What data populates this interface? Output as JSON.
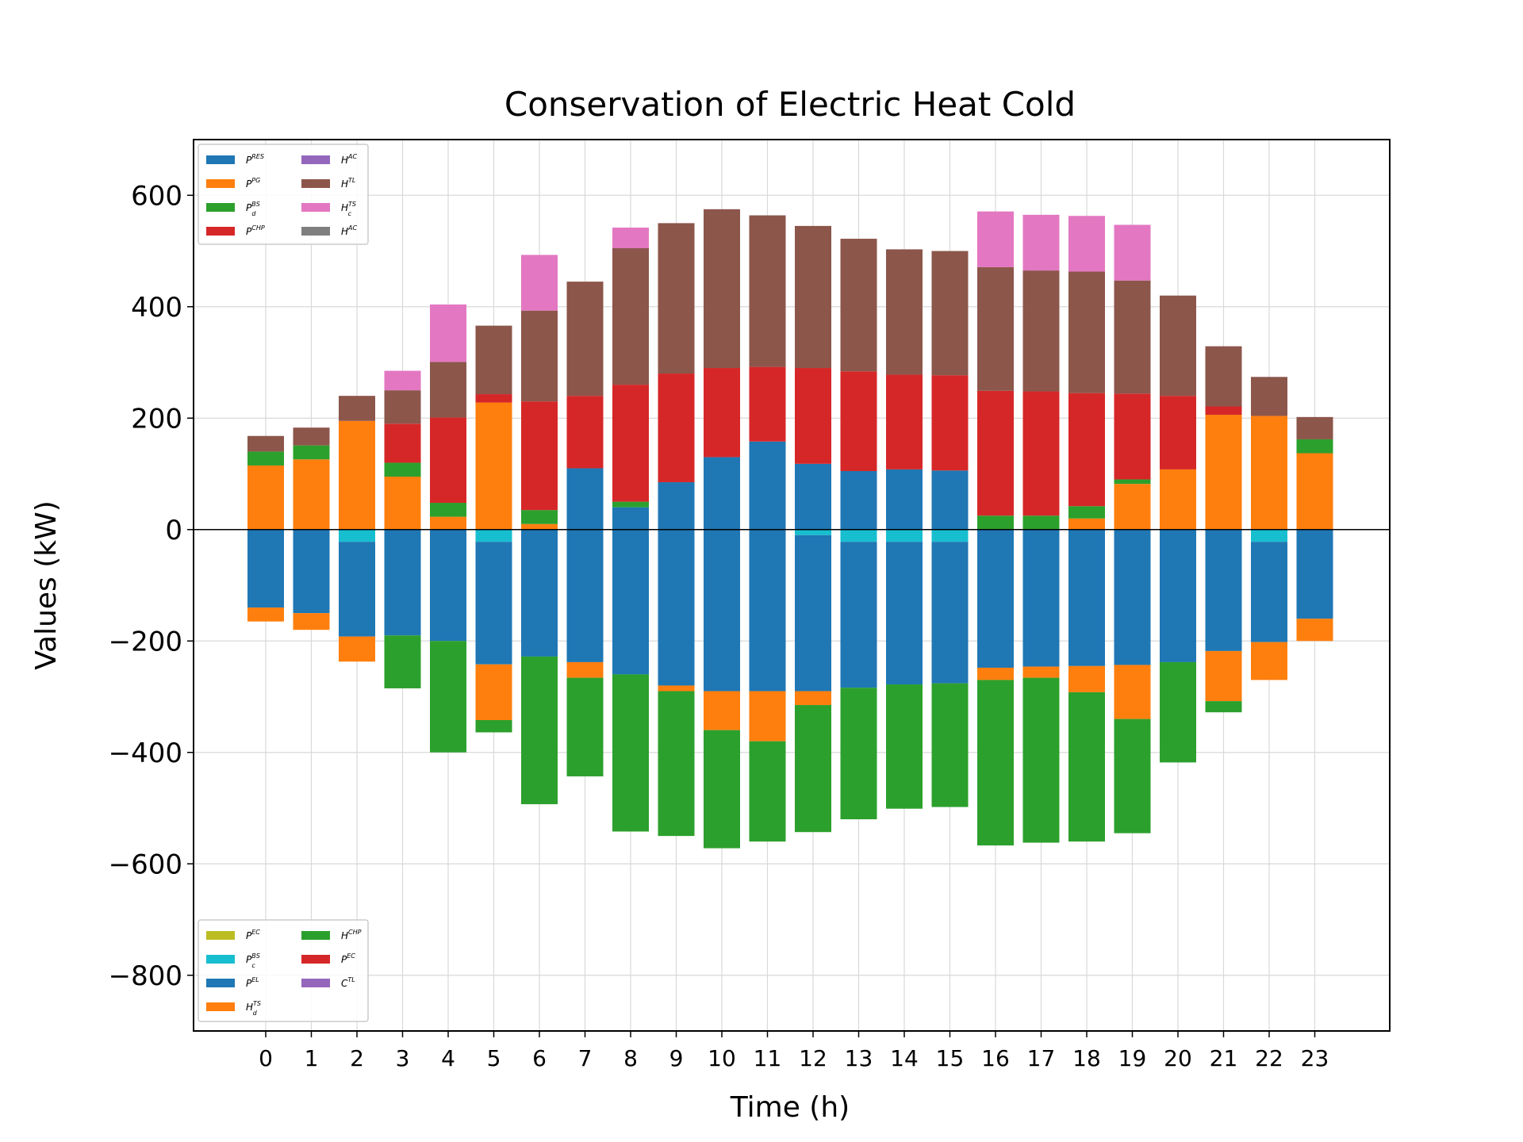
{
  "chart_data": {
    "type": "bar",
    "stacked": true,
    "title": "Conservation of Electric Heat Cold",
    "xlabel": "Time (h)",
    "ylabel": "Values (kW)",
    "ylim": [
      -900,
      700
    ],
    "yticks": [
      600,
      400,
      200,
      0,
      -200,
      -400,
      -600,
      -800
    ],
    "ytick_labels": [
      "600",
      "400",
      "200",
      "0",
      "−200",
      "−400",
      "−600",
      "−800"
    ],
    "grid": true,
    "legend_positions": [
      "top-left",
      "bottom-left"
    ],
    "categories": [
      "0",
      "1",
      "2",
      "3",
      "4",
      "5",
      "6",
      "7",
      "8",
      "9",
      "10",
      "11",
      "12",
      "13",
      "14",
      "15",
      "16",
      "17",
      "18",
      "19",
      "20",
      "21",
      "22",
      "23"
    ],
    "positive_series": [
      {
        "name": "P^RES",
        "base": "P",
        "sup": "RES",
        "sub": "",
        "color": "#1f77b4",
        "values": [
          0,
          0,
          0,
          0,
          0,
          0,
          0,
          110,
          40,
          85,
          130,
          158,
          118,
          105,
          108,
          106,
          0,
          0,
          0,
          0,
          0,
          0,
          0,
          0
        ]
      },
      {
        "name": "P^PG",
        "base": "P",
        "sup": "PG",
        "sub": "",
        "color": "#ff7f0e",
        "values": [
          115,
          126,
          195,
          95,
          23,
          228,
          10,
          0,
          0,
          0,
          0,
          0,
          0,
          0,
          0,
          0,
          0,
          0,
          20,
          82,
          108,
          206,
          204,
          137
        ]
      },
      {
        "name": "P_d^BS",
        "base": "P",
        "sup": "BS",
        "sub": "d",
        "color": "#2ca02c",
        "values": [
          25,
          25,
          0,
          25,
          25,
          0,
          25,
          0,
          10,
          0,
          0,
          0,
          0,
          0,
          0,
          0,
          25,
          25,
          22,
          8,
          0,
          0,
          0,
          25
        ]
      },
      {
        "name": "P^CHP",
        "base": "P",
        "sup": "CHP",
        "sub": "",
        "color": "#d62728",
        "values": [
          0,
          0,
          0,
          70,
          153,
          15,
          195,
          130,
          210,
          195,
          160,
          134,
          172,
          179,
          170,
          171,
          224,
          223,
          203,
          154,
          132,
          15,
          0,
          0
        ]
      },
      {
        "name": "H^AC",
        "base": "H",
        "sup": "AC",
        "sub": "",
        "color": "#9467bd",
        "values": [
          0,
          0,
          0,
          0,
          0,
          0,
          0,
          0,
          0,
          0,
          0,
          0,
          0,
          0,
          0,
          0,
          0,
          0,
          0,
          0,
          0,
          0,
          0,
          0
        ]
      },
      {
        "name": "H^TL",
        "base": "H",
        "sup": "TL",
        "sub": "",
        "color": "#8c564b",
        "values": [
          28,
          32,
          45,
          60,
          100,
          123,
          163,
          205,
          245,
          270,
          285,
          272,
          255,
          238,
          225,
          223,
          222,
          217,
          218,
          203,
          180,
          108,
          70,
          40
        ]
      },
      {
        "name": "H_c^TS",
        "base": "H",
        "sup": "TS",
        "sub": "c",
        "color": "#e377c2",
        "values": [
          0,
          0,
          0,
          35,
          103,
          0,
          100,
          0,
          37,
          0,
          0,
          0,
          0,
          0,
          0,
          0,
          100,
          100,
          100,
          100,
          0,
          0,
          0,
          0
        ]
      },
      {
        "name": "H^AC",
        "base": "H",
        "sup": "AC",
        "sub": "",
        "color": "#7f7f7f",
        "values": [
          0,
          0,
          0,
          0,
          0,
          0,
          0,
          0,
          0,
          0,
          0,
          0,
          0,
          0,
          0,
          0,
          0,
          0,
          0,
          0,
          0,
          0,
          0,
          0
        ]
      }
    ],
    "negative_series": [
      {
        "name": "P^EC",
        "base": "P",
        "sup": "EC",
        "sub": "",
        "color": "#bcbd22",
        "values": [
          0,
          0,
          0,
          0,
          0,
          0,
          0,
          0,
          0,
          0,
          0,
          0,
          0,
          0,
          0,
          0,
          0,
          0,
          0,
          0,
          0,
          0,
          0,
          0
        ]
      },
      {
        "name": "P_c^BS",
        "base": "P",
        "sup": "BS",
        "sub": "c",
        "color": "#17becf",
        "values": [
          0,
          0,
          -22,
          0,
          0,
          -22,
          0,
          0,
          0,
          0,
          0,
          0,
          -10,
          -22,
          -22,
          -22,
          0,
          0,
          0,
          0,
          0,
          0,
          -22,
          0
        ]
      },
      {
        "name": "P^EL",
        "base": "P",
        "sup": "EL",
        "sub": "",
        "color": "#1f77b4",
        "values": [
          -140,
          -150,
          -170,
          -190,
          -200,
          -220,
          -228,
          -238,
          -260,
          -280,
          -290,
          -290,
          -280,
          -262,
          -256,
          -254,
          -248,
          -246,
          -245,
          -243,
          -238,
          -218,
          -180,
          -160
        ]
      },
      {
        "name": "H_d^TS",
        "base": "H",
        "sup": "TS",
        "sub": "d",
        "color": "#ff7f0e",
        "values": [
          -25,
          -30,
          -45,
          0,
          0,
          -100,
          0,
          -28,
          0,
          -10,
          -70,
          -90,
          -25,
          0,
          0,
          0,
          -22,
          -20,
          -47,
          -97,
          0,
          -90,
          -68,
          -40
        ]
      },
      {
        "name": "H^CHP",
        "base": "H",
        "sup": "CHP",
        "sub": "",
        "color": "#2ca02c",
        "values": [
          0,
          0,
          0,
          -95,
          -200,
          -22,
          -265,
          -177,
          -282,
          -260,
          -212,
          -180,
          -228,
          -236,
          -223,
          -222,
          -297,
          -296,
          -268,
          -205,
          -180,
          -20,
          0,
          0
        ]
      },
      {
        "name": "P^EC",
        "base": "P",
        "sup": "EC",
        "sub": "",
        "color": "#d62728",
        "values": [
          0,
          0,
          0,
          0,
          0,
          0,
          0,
          0,
          0,
          0,
          0,
          0,
          0,
          0,
          0,
          0,
          0,
          0,
          0,
          0,
          0,
          0,
          0,
          0
        ]
      },
      {
        "name": "C^TL",
        "base": "C",
        "sup": "TL",
        "sub": "",
        "color": "#9467bd",
        "values": [
          0,
          0,
          0,
          0,
          0,
          0,
          0,
          0,
          0,
          0,
          0,
          0,
          0,
          0,
          0,
          0,
          0,
          0,
          0,
          0,
          0,
          0,
          0,
          0
        ]
      }
    ]
  }
}
